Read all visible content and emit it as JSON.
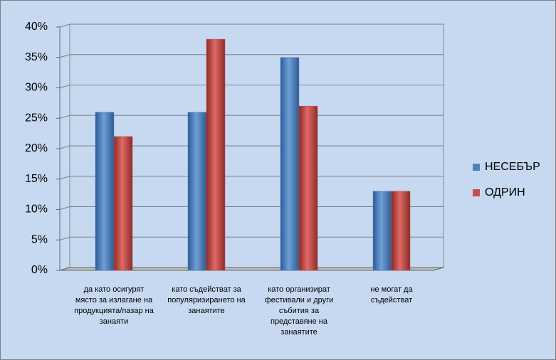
{
  "chart_data": {
    "type": "bar",
    "categories": [
      "да като осигурят място за излагане на продукцията/пазар на занаяти",
      "като съдействат за популяризирането на занаятите",
      "като организират фестивали и други събития за представяне на занаятите",
      "не могат да съдействат"
    ],
    "series": [
      {
        "name": "НЕСЕБЪР",
        "color": "#4f81bd",
        "values": [
          26,
          26,
          35,
          13
        ]
      },
      {
        "name": "ОДРИН",
        "color": "#c0504d",
        "values": [
          22,
          38,
          27,
          13
        ]
      }
    ],
    "ylim": [
      0,
      40
    ],
    "yticks": [
      {
        "value": 0,
        "label": "0%"
      },
      {
        "value": 5,
        "label": "5%"
      },
      {
        "value": 10,
        "label": "10%"
      },
      {
        "value": 15,
        "label": "15%"
      },
      {
        "value": 20,
        "label": "20%"
      },
      {
        "value": 25,
        "label": "25%"
      },
      {
        "value": 30,
        "label": "30%"
      },
      {
        "value": 35,
        "label": "35%"
      },
      {
        "value": 40,
        "label": "40%"
      }
    ],
    "grid": true,
    "legend": "right"
  }
}
